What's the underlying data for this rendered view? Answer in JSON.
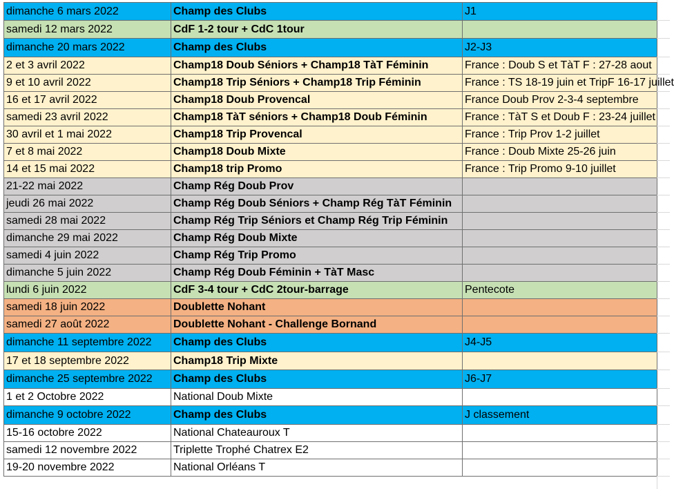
{
  "colors": {
    "blue": "#00b0f0",
    "green": "#c6e0b4",
    "cream": "#fff2cc",
    "gray": "#d0cece",
    "orange": "#f4b183",
    "white": "#ffffff"
  },
  "rows": [
    {
      "date": "dimanche 6 mars 2022",
      "event": "Champ des Clubs",
      "note": "J1",
      "color": "#00b0f0",
      "h": 26,
      "note_size": "lg",
      "bold": true
    },
    {
      "date": "samedi 12 mars 2022",
      "event": "CdF 1-2 tour + CdC 1tour",
      "note": "",
      "color": "#c6e0b4",
      "h": 26,
      "note_size": "sm",
      "bold": true
    },
    {
      "date": "dimanche 20 mars 2022",
      "event": "Champ des Clubs",
      "note": "J2-J3",
      "color": "#00b0f0",
      "h": 27,
      "note_size": "lg",
      "bold": true
    },
    {
      "date": "2 et 3 avril 2022",
      "event": "Champ18 Doub Séniors + Champ18 TàT Féminin",
      "note": "France : Doub S et TàT F : 27-28 aout",
      "color": "#fff2cc",
      "h": 25,
      "note_size": "sm",
      "bold": true
    },
    {
      "date": "9 et 10 avril 2022",
      "event": "Champ18 Trip Séniors + Champ18 Trip Féminin",
      "note": "France : TS 18-19 juin et TripF 16-17 juillet",
      "color": "#fff2cc",
      "h": 25,
      "note_size": "sm",
      "bold": true
    },
    {
      "date": "16 et 17 avril 2022",
      "event": "Champ18 Doub Provencal",
      "note": "France Doub Prov 2-3-4 septembre",
      "color": "#fff2cc",
      "h": 25,
      "note_size": "sm",
      "bold": true
    },
    {
      "date": "samedi 23 avril 2022",
      "event": "Champ18 TàT séniors + Champ18 Doub Féminin",
      "note": "France : TàT S et Doub F : 23-24 juillet",
      "color": "#fff2cc",
      "h": 25,
      "note_size": "sm",
      "bold": true
    },
    {
      "date": "30 avril et 1 mai 2022",
      "event": "Champ18 Trip Provencal",
      "note": "France : Trip Prov 1-2 juillet",
      "color": "#fff2cc",
      "h": 25,
      "note_size": "sm",
      "bold": true
    },
    {
      "date": "7 et 8 mai 2022",
      "event": "Champ18 Doub Mixte",
      "note": "France : Doub Mixte 25-26 juin",
      "color": "#fff2cc",
      "h": 25,
      "note_size": "sm",
      "bold": true
    },
    {
      "date": "14 et 15 mai 2022",
      "event": "Champ18 trip Promo",
      "note": "France : Trip Promo 9-10 juillet",
      "color": "#fff2cc",
      "h": 25,
      "note_size": "sm",
      "bold": true
    },
    {
      "date": "21-22 mai 2022",
      "event": "Champ Rég Doub Prov",
      "note": "",
      "color": "#d0cece",
      "h": 25,
      "note_size": "sm",
      "bold": true
    },
    {
      "date": "jeudi 26 mai 2022",
      "event": "Champ Rég Doub Séniors  + Champ Rég TàT Féminin",
      "note": "",
      "color": "#d0cece",
      "h": 25,
      "note_size": "sm",
      "bold": true
    },
    {
      "date": "samedi 28 mai 2022",
      "event": "Champ Rég Trip Séniors et Champ Rég Trip Féminin",
      "note": "",
      "color": "#d0cece",
      "h": 25,
      "note_size": "sm",
      "bold": true
    },
    {
      "date": "dimanche 29 mai 2022",
      "event": "Champ Rég Doub Mixte",
      "note": "",
      "color": "#d0cece",
      "h": 25,
      "note_size": "sm",
      "bold": true
    },
    {
      "date": "samedi 4 juin 2022",
      "event": "Champ Rég Trip Promo",
      "note": "",
      "color": "#d0cece",
      "h": 25,
      "note_size": "sm",
      "bold": true
    },
    {
      "date": "dimanche 5 juin 2022",
      "event": "Champ Rég Doub Féminin + TàT Masc",
      "note": "",
      "color": "#d0cece",
      "h": 25,
      "note_size": "sm",
      "bold": true
    },
    {
      "date": "lundi 6 juin 2022",
      "event": "CdF 3-4 tour + CdC 2tour-barrage",
      "note": "Pentecote",
      "color": "#c6e0b4",
      "h": 25,
      "note_size": "xs",
      "bold": true
    },
    {
      "date": "samedi 18 juin 2022",
      "event": "Doublette Nohant",
      "note": "",
      "color": "#f4b183",
      "h": 25,
      "note_size": "sm",
      "bold": true
    },
    {
      "date": "samedi 27 août 2022",
      "event": "Doublette Nohant - Challenge Bornand",
      "note": "",
      "color": "#f4b183",
      "h": 25,
      "note_size": "sm",
      "bold": true
    },
    {
      "date": "dimanche 11 septembre 2022",
      "event": "Champ des Clubs",
      "note": "J4-J5",
      "color": "#00b0f0",
      "h": 27,
      "note_size": "lg",
      "bold": true
    },
    {
      "date": "17 et 18 septembre 2022",
      "event": "Champ18 Trip Mixte",
      "note": "",
      "color": "#fff2cc",
      "h": 26,
      "note_size": "sm",
      "bold": true
    },
    {
      "date": "dimanche 25 septembre 2022",
      "event": "Champ des Clubs",
      "note": "J6-J7",
      "color": "#00b0f0",
      "h": 27,
      "note_size": "lg",
      "bold": true
    },
    {
      "date": "1 et 2 Octobre 2022",
      "event": "National Doub Mixte",
      "note": "",
      "color": "#ffffff",
      "h": 25,
      "note_size": "sm",
      "bold": false
    },
    {
      "date": "dimanche 9 octobre 2022",
      "event": "Champ des Clubs",
      "note": "J classement",
      "color": "#00b0f0",
      "h": 27,
      "note_size": "lg",
      "bold": true
    },
    {
      "date": "15-16 octobre 2022",
      "event": "National Chateauroux T",
      "note": "",
      "color": "#ffffff",
      "h": 25,
      "note_size": "sm",
      "bold": false
    },
    {
      "date": "samedi 12 novembre 2022",
      "event": "Triplette Trophé Chatrex E2",
      "note": "",
      "color": "#ffffff",
      "h": 25,
      "note_size": "sm",
      "bold": false
    },
    {
      "date": "19-20 novembre 2022",
      "event": "National Orléans T",
      "note": "",
      "color": "#ffffff",
      "h": 25,
      "note_size": "sm",
      "bold": false
    }
  ]
}
